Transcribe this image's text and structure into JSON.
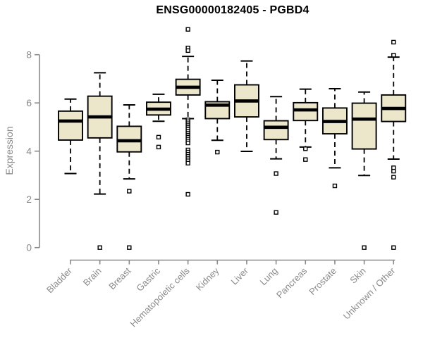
{
  "chart_data": {
    "type": "boxplot",
    "title": "ENSG00000182405 - PGBD4",
    "ylabel": "Expression",
    "xlabel": "",
    "yticks": [
      0,
      2,
      4,
      6,
      8
    ],
    "ylim": [
      0,
      9.3
    ],
    "grid": false,
    "legend": "none",
    "colors": {
      "box_fill": "#ECE6CB",
      "box_stroke": "#000000",
      "median": "#000000",
      "whisker": "#000000",
      "outlier": "#000000",
      "axis": "#8a8a8a",
      "tick_text": "#8a8a8a",
      "title_text": "#000000"
    },
    "categories": [
      "Bladder",
      "Brain",
      "Breast",
      "Gastric",
      "Hematopoietic cells",
      "Kidney",
      "Liver",
      "Lung",
      "Pancreas",
      "Prostate",
      "Skin",
      "Unknown / Other"
    ],
    "series": [
      {
        "category": "Bladder",
        "whisker_low": 3.07,
        "q1": 4.46,
        "median": 5.25,
        "q3": 5.66,
        "whisker_high": 6.16,
        "outliers": []
      },
      {
        "category": "Brain",
        "whisker_low": 2.22,
        "q1": 4.55,
        "median": 5.42,
        "q3": 6.28,
        "whisker_high": 7.25,
        "outliers": [
          0
        ]
      },
      {
        "category": "Breast",
        "whisker_low": 2.85,
        "q1": 3.97,
        "median": 4.43,
        "q3": 5.03,
        "whisker_high": 5.92,
        "outliers": [
          2.34,
          0
        ]
      },
      {
        "category": "Gastric",
        "whisker_low": 5.24,
        "q1": 5.5,
        "median": 5.74,
        "q3": 6.03,
        "whisker_high": 6.36,
        "outliers": [
          4.58,
          4.17
        ]
      },
      {
        "category": "Hematopoietic cells",
        "whisker_low": 5.35,
        "q1": 6.33,
        "median": 6.65,
        "q3": 6.98,
        "whisker_high": 7.93,
        "outliers": [
          9.05,
          8.28,
          8.17,
          5.3,
          5.22,
          5.14,
          5.06,
          4.98,
          4.9,
          4.82,
          4.74,
          4.66,
          4.58,
          4.5,
          4.42,
          4.34,
          4.05,
          3.96,
          3.87,
          3.78,
          3.69,
          3.6,
          3.5,
          2.21
        ]
      },
      {
        "category": "Kidney",
        "whisker_low": 4.45,
        "q1": 5.35,
        "median": 5.91,
        "q3": 6.05,
        "whisker_high": 6.94,
        "outliers": [
          3.96
        ]
      },
      {
        "category": "Liver",
        "whisker_low": 3.99,
        "q1": 5.42,
        "median": 6.08,
        "q3": 6.75,
        "whisker_high": 7.74,
        "outliers": []
      },
      {
        "category": "Lung",
        "whisker_low": 3.68,
        "q1": 4.48,
        "median": 4.99,
        "q3": 5.26,
        "whisker_high": 6.26,
        "outliers": [
          3.07,
          1.46
        ]
      },
      {
        "category": "Pancreas",
        "whisker_low": 4.17,
        "q1": 5.27,
        "median": 5.71,
        "q3": 6.01,
        "whisker_high": 6.57,
        "outliers": [
          4.1,
          3.65
        ]
      },
      {
        "category": "Prostate",
        "whisker_low": 3.31,
        "q1": 4.72,
        "median": 5.23,
        "q3": 5.79,
        "whisker_high": 6.59,
        "outliers": [
          2.56
        ]
      },
      {
        "category": "Skin",
        "whisker_low": 2.99,
        "q1": 4.09,
        "median": 5.33,
        "q3": 5.99,
        "whisker_high": 6.45,
        "outliers": [
          0
        ]
      },
      {
        "category": "Unknown / Other",
        "whisker_low": 3.67,
        "q1": 5.23,
        "median": 5.77,
        "q3": 6.33,
        "whisker_high": 7.9,
        "outliers": [
          8.52,
          7.98,
          3.31,
          3.17,
          2.92,
          0
        ]
      }
    ]
  }
}
